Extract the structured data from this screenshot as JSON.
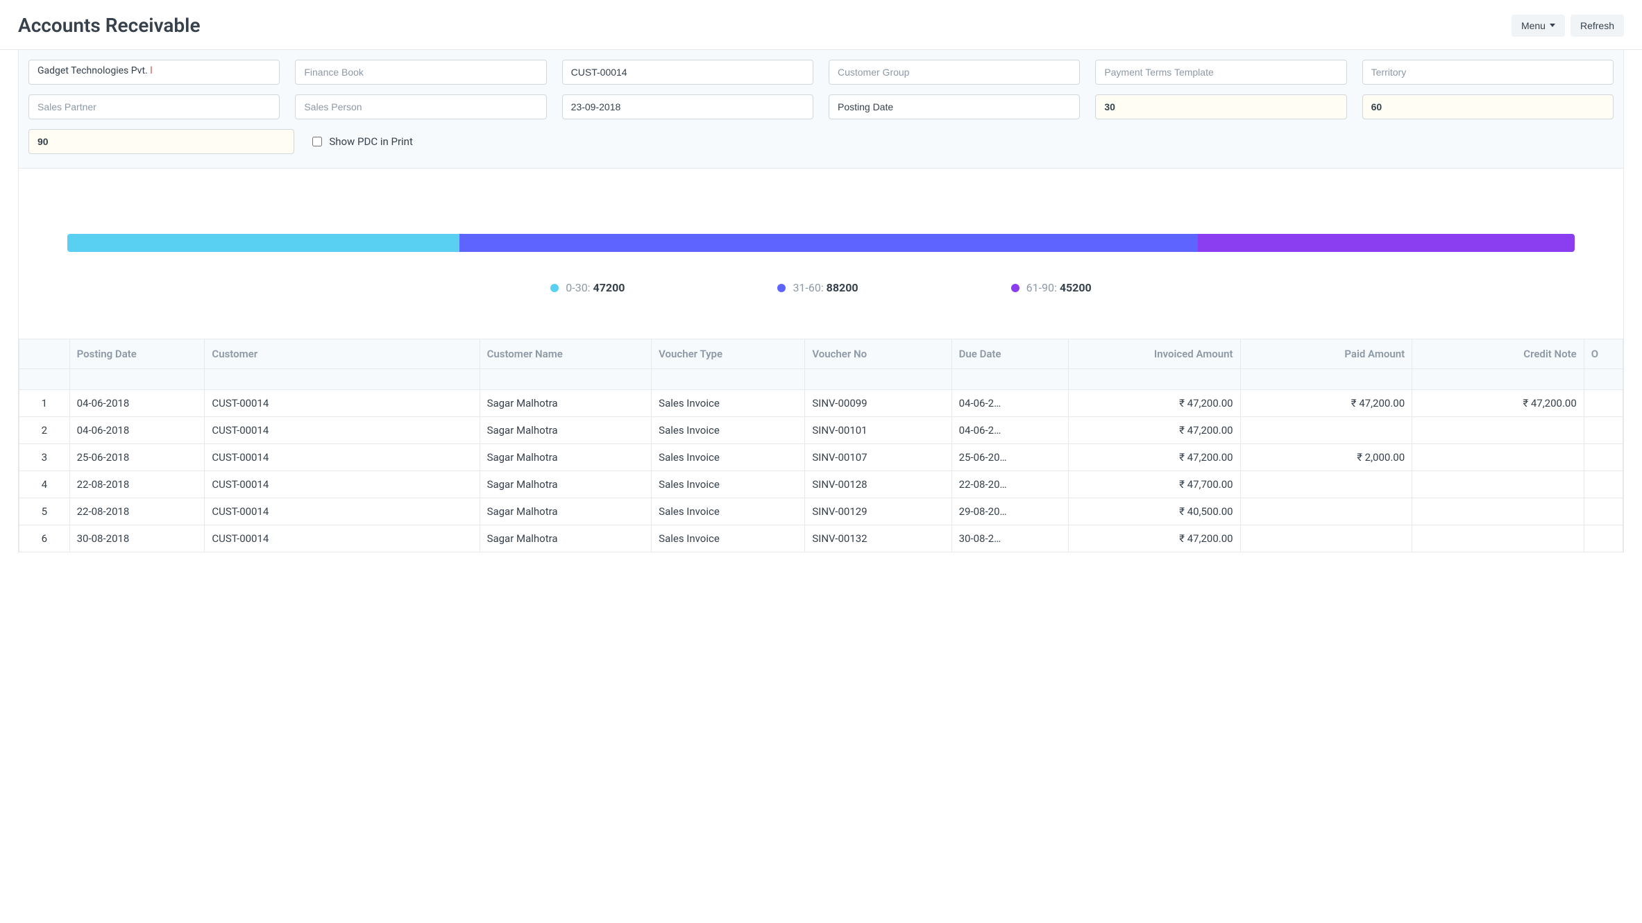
{
  "header": {
    "title": "Accounts Receivable",
    "menu_label": "Menu",
    "refresh_label": "Refresh"
  },
  "filters": {
    "company_value_main": "Gadget Technologies Pvt.",
    "company_value_trunc": " l",
    "finance_book_placeholder": "Finance Book",
    "customer_value": "CUST-00014",
    "customer_group_placeholder": "Customer Group",
    "payment_terms_placeholder": "Payment Terms Template",
    "territory_placeholder": "Territory",
    "sales_partner_placeholder": "Sales Partner",
    "sales_person_placeholder": "Sales Person",
    "report_date_value": "23-09-2018",
    "posting_date_value": "Posting Date",
    "range1_value": "30",
    "range2_value": "60",
    "range3_value": "90",
    "show_pdc_label": "Show PDC in Print"
  },
  "chart": {
    "segments": [
      {
        "label": "0-30",
        "value": 47200,
        "color": "#59d0f2",
        "width_pct": 26
      },
      {
        "label": "31-60",
        "value": 88200,
        "color": "#5e64ff",
        "width_pct": 49
      },
      {
        "label": "61-90",
        "value": 45200,
        "color": "#8a3ef0",
        "width_pct": 25
      }
    ]
  },
  "table": {
    "columns": {
      "posting_date": "Posting Date",
      "customer": "Customer",
      "customer_name": "Customer Name",
      "voucher_type": "Voucher Type",
      "voucher_no": "Voucher No",
      "due_date": "Due Date",
      "invoiced_amount": "Invoiced Amount",
      "paid_amount": "Paid Amount",
      "credit_note": "Credit Note",
      "overflow": "O"
    },
    "rows": [
      {
        "idx": "1",
        "posting_date": "04-06-2018",
        "customer": "CUST-00014",
        "customer_name": "Sagar Malhotra",
        "voucher_type": "Sales Invoice",
        "voucher_no": "SINV-00099",
        "due_date": "04-06-2…",
        "invoiced_amount": "₹ 47,200.00",
        "paid_amount": "₹ 47,200.00",
        "credit_note": "₹ 47,200.00"
      },
      {
        "idx": "2",
        "posting_date": "04-06-2018",
        "customer": "CUST-00014",
        "customer_name": "Sagar Malhotra",
        "voucher_type": "Sales Invoice",
        "voucher_no": "SINV-00101",
        "due_date": "04-06-2…",
        "invoiced_amount": "₹ 47,200.00",
        "paid_amount": "",
        "credit_note": ""
      },
      {
        "idx": "3",
        "posting_date": "25-06-2018",
        "customer": "CUST-00014",
        "customer_name": "Sagar Malhotra",
        "voucher_type": "Sales Invoice",
        "voucher_no": "SINV-00107",
        "due_date": "25-06-20…",
        "invoiced_amount": "₹ 47,200.00",
        "paid_amount": "₹ 2,000.00",
        "credit_note": ""
      },
      {
        "idx": "4",
        "posting_date": "22-08-2018",
        "customer": "CUST-00014",
        "customer_name": "Sagar Malhotra",
        "voucher_type": "Sales Invoice",
        "voucher_no": "SINV-00128",
        "due_date": "22-08-20…",
        "invoiced_amount": "₹ 47,700.00",
        "paid_amount": "",
        "credit_note": ""
      },
      {
        "idx": "5",
        "posting_date": "22-08-2018",
        "customer": "CUST-00014",
        "customer_name": "Sagar Malhotra",
        "voucher_type": "Sales Invoice",
        "voucher_no": "SINV-00129",
        "due_date": "29-08-20…",
        "invoiced_amount": "₹ 40,500.00",
        "paid_amount": "",
        "credit_note": ""
      },
      {
        "idx": "6",
        "posting_date": "30-08-2018",
        "customer": "CUST-00014",
        "customer_name": "Sagar Malhotra",
        "voucher_type": "Sales Invoice",
        "voucher_no": "SINV-00132",
        "due_date": "30-08-2…",
        "invoiced_amount": "₹ 47,200.00",
        "paid_amount": "",
        "credit_note": ""
      }
    ]
  }
}
